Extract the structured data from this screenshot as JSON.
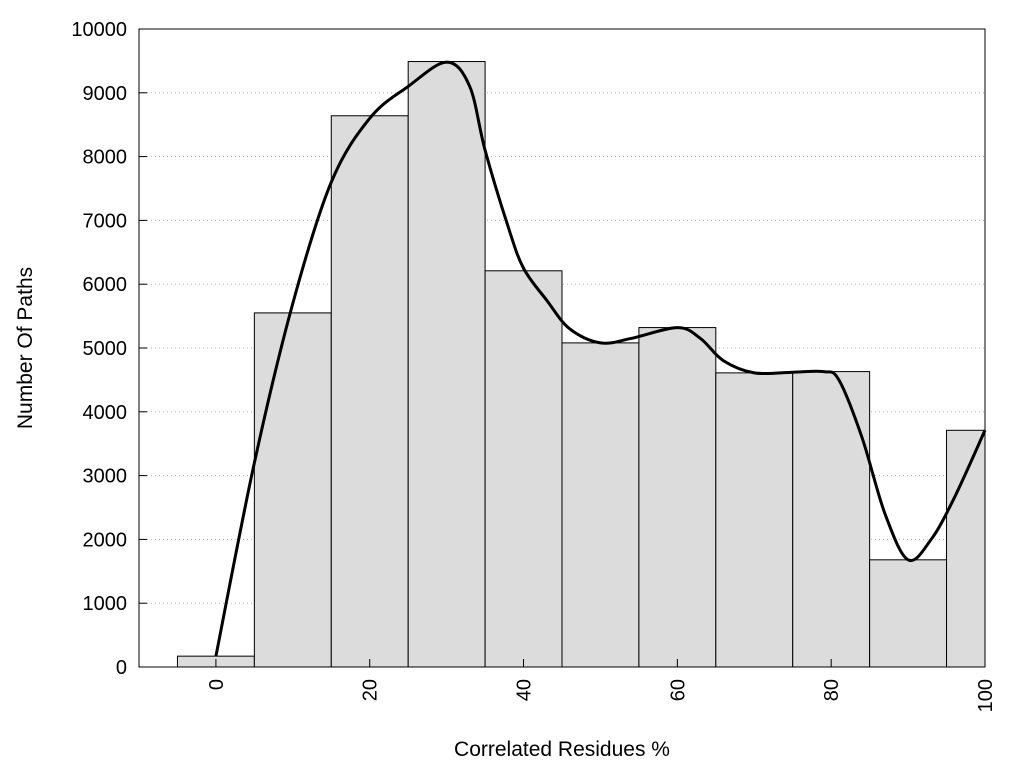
{
  "chart_data": {
    "type": "bar",
    "x": [
      0,
      10,
      20,
      30,
      40,
      50,
      60,
      70,
      80,
      90,
      100
    ],
    "values": [
      170,
      5550,
      8640,
      9490,
      6210,
      5080,
      5320,
      4610,
      4630,
      1680,
      3710
    ],
    "curve": {
      "type": "line",
      "points": [
        [
          0,
          170
        ],
        [
          5,
          3200
        ],
        [
          10,
          5700
        ],
        [
          15,
          7600
        ],
        [
          20,
          8600
        ],
        [
          25,
          9100
        ],
        [
          30,
          9480
        ],
        [
          33,
          9100
        ],
        [
          35,
          8100
        ],
        [
          38,
          6900
        ],
        [
          40,
          6250
        ],
        [
          43,
          5750
        ],
        [
          46,
          5300
        ],
        [
          50,
          5080
        ],
        [
          54,
          5150
        ],
        [
          60,
          5320
        ],
        [
          63,
          5150
        ],
        [
          66,
          4800
        ],
        [
          70,
          4610
        ],
        [
          75,
          4620
        ],
        [
          79,
          4630
        ],
        [
          81,
          4500
        ],
        [
          84,
          3600
        ],
        [
          87,
          2400
        ],
        [
          90,
          1680
        ],
        [
          93,
          2000
        ],
        [
          96,
          2650
        ],
        [
          100,
          3710
        ]
      ]
    },
    "title": "",
    "xlabel": "Correlated Residues %",
    "ylabel": "Number Of Paths",
    "xlim": [
      -10,
      100
    ],
    "ylim": [
      0,
      10000
    ],
    "xticks": [
      "0",
      "20",
      "40",
      "60",
      "80",
      "100"
    ],
    "xtick_values": [
      0,
      20,
      40,
      60,
      80,
      100
    ],
    "yticks": [
      "0",
      "1000",
      "2000",
      "3000",
      "4000",
      "5000",
      "6000",
      "7000",
      "8000",
      "9000",
      "10000"
    ],
    "ytick_values": [
      0,
      1000,
      2000,
      3000,
      4000,
      5000,
      6000,
      7000,
      8000,
      9000,
      10000
    ],
    "bin_width": 10,
    "grid": "horizontal dotted",
    "colors": {
      "bar_fill": "#dcdcdc",
      "bar_stroke": "#000000",
      "curve": "#000000",
      "grid": "#b0b0b0"
    }
  }
}
